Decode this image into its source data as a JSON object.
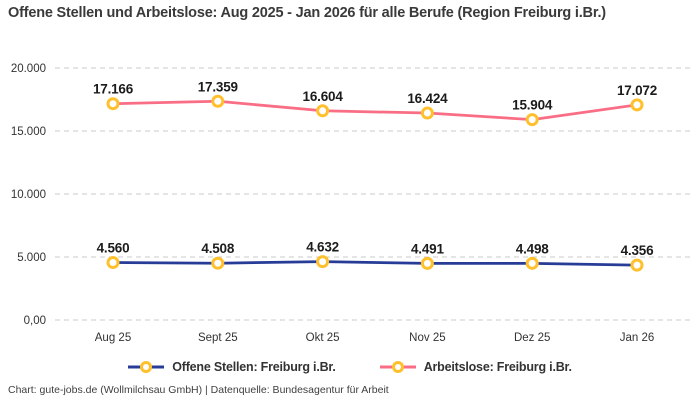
{
  "title": "Offene Stellen und Arbeitslose: Aug 2025 - Jan 2026 für alle Berufe (Region Freiburg i.Br.)",
  "footer": "Chart: gute-jobs.de (Wollmilchsau GmbH) | Datenquelle: Bundesagentur für Arbeit",
  "colors": {
    "grid": "#cbcbcb",
    "axis_text": "#333333",
    "label_text": "#1b1b1b"
  },
  "chart_data": {
    "type": "line",
    "categories": [
      "Aug 25",
      "Sept 25",
      "Okt 25",
      "Nov 25",
      "Dez 25",
      "Jan 26"
    ],
    "series": [
      {
        "name": "Offene Stellen: Freiburg i.Br.",
        "color": "#263c97",
        "values": [
          4560,
          4508,
          4632,
          4491,
          4498,
          4356
        ],
        "labels": [
          "4.560",
          "4.508",
          "4.632",
          "4.491",
          "4.498",
          "4.356"
        ]
      },
      {
        "name": "Arbeitslose: Freiburg i.Br.",
        "color": "#f96e84",
        "values": [
          17166,
          17359,
          16604,
          16424,
          15904,
          17072
        ],
        "labels": [
          "17.166",
          "17.359",
          "16.604",
          "16.424",
          "15.904",
          "17.072"
        ]
      }
    ],
    "y_axis": {
      "ticks": [
        0,
        5000,
        10000,
        15000,
        20000
      ],
      "tick_labels": [
        "0,00",
        "5.000",
        "10.000",
        "15.000",
        "20.000"
      ],
      "range": [
        0,
        20000
      ]
    },
    "marker": {
      "fill": "#ffffff",
      "stroke": "#ffc02e"
    },
    "grid": "horizontal-dashed",
    "legend_position": "bottom"
  }
}
